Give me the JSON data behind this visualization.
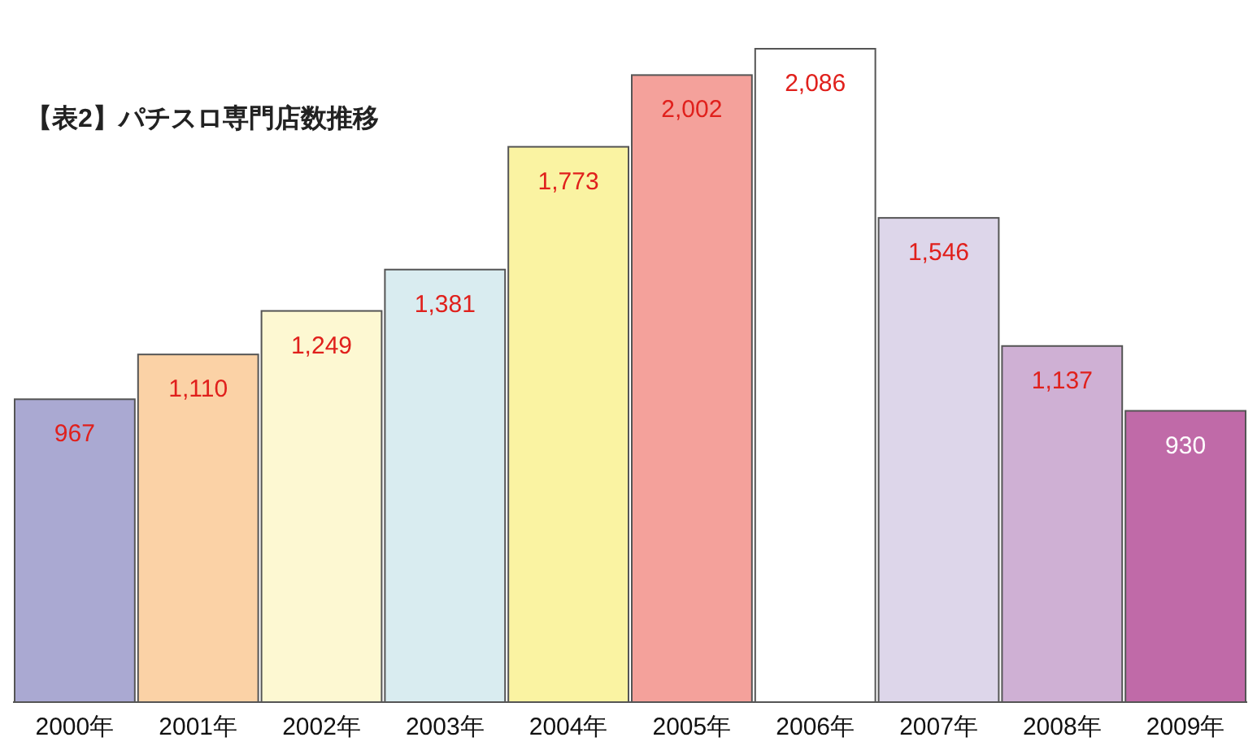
{
  "chart_data": {
    "type": "bar",
    "title": "【表2】パチスロ専門店数推移",
    "categories": [
      "2000年",
      "2001年",
      "2002年",
      "2003年",
      "2004年",
      "2005年",
      "2006年",
      "2007年",
      "2008年",
      "2009年"
    ],
    "values": [
      967,
      1110,
      1249,
      1381,
      1773,
      2002,
      2086,
      1546,
      1137,
      930
    ],
    "colors": [
      "#aaa9d2",
      "#fbd2a6",
      "#fdf8d2",
      "#d9ecf0",
      "#faf3a2",
      "#f4a19b",
      "#ffffff",
      "#ddd6ea",
      "#cfb0d4",
      "#c06aa8"
    ],
    "value_labels": [
      "967",
      "1,110",
      "1,249",
      "1,381",
      "1,773",
      "2,002",
      "2,086",
      "1,546",
      "1,137",
      "930"
    ]
  }
}
